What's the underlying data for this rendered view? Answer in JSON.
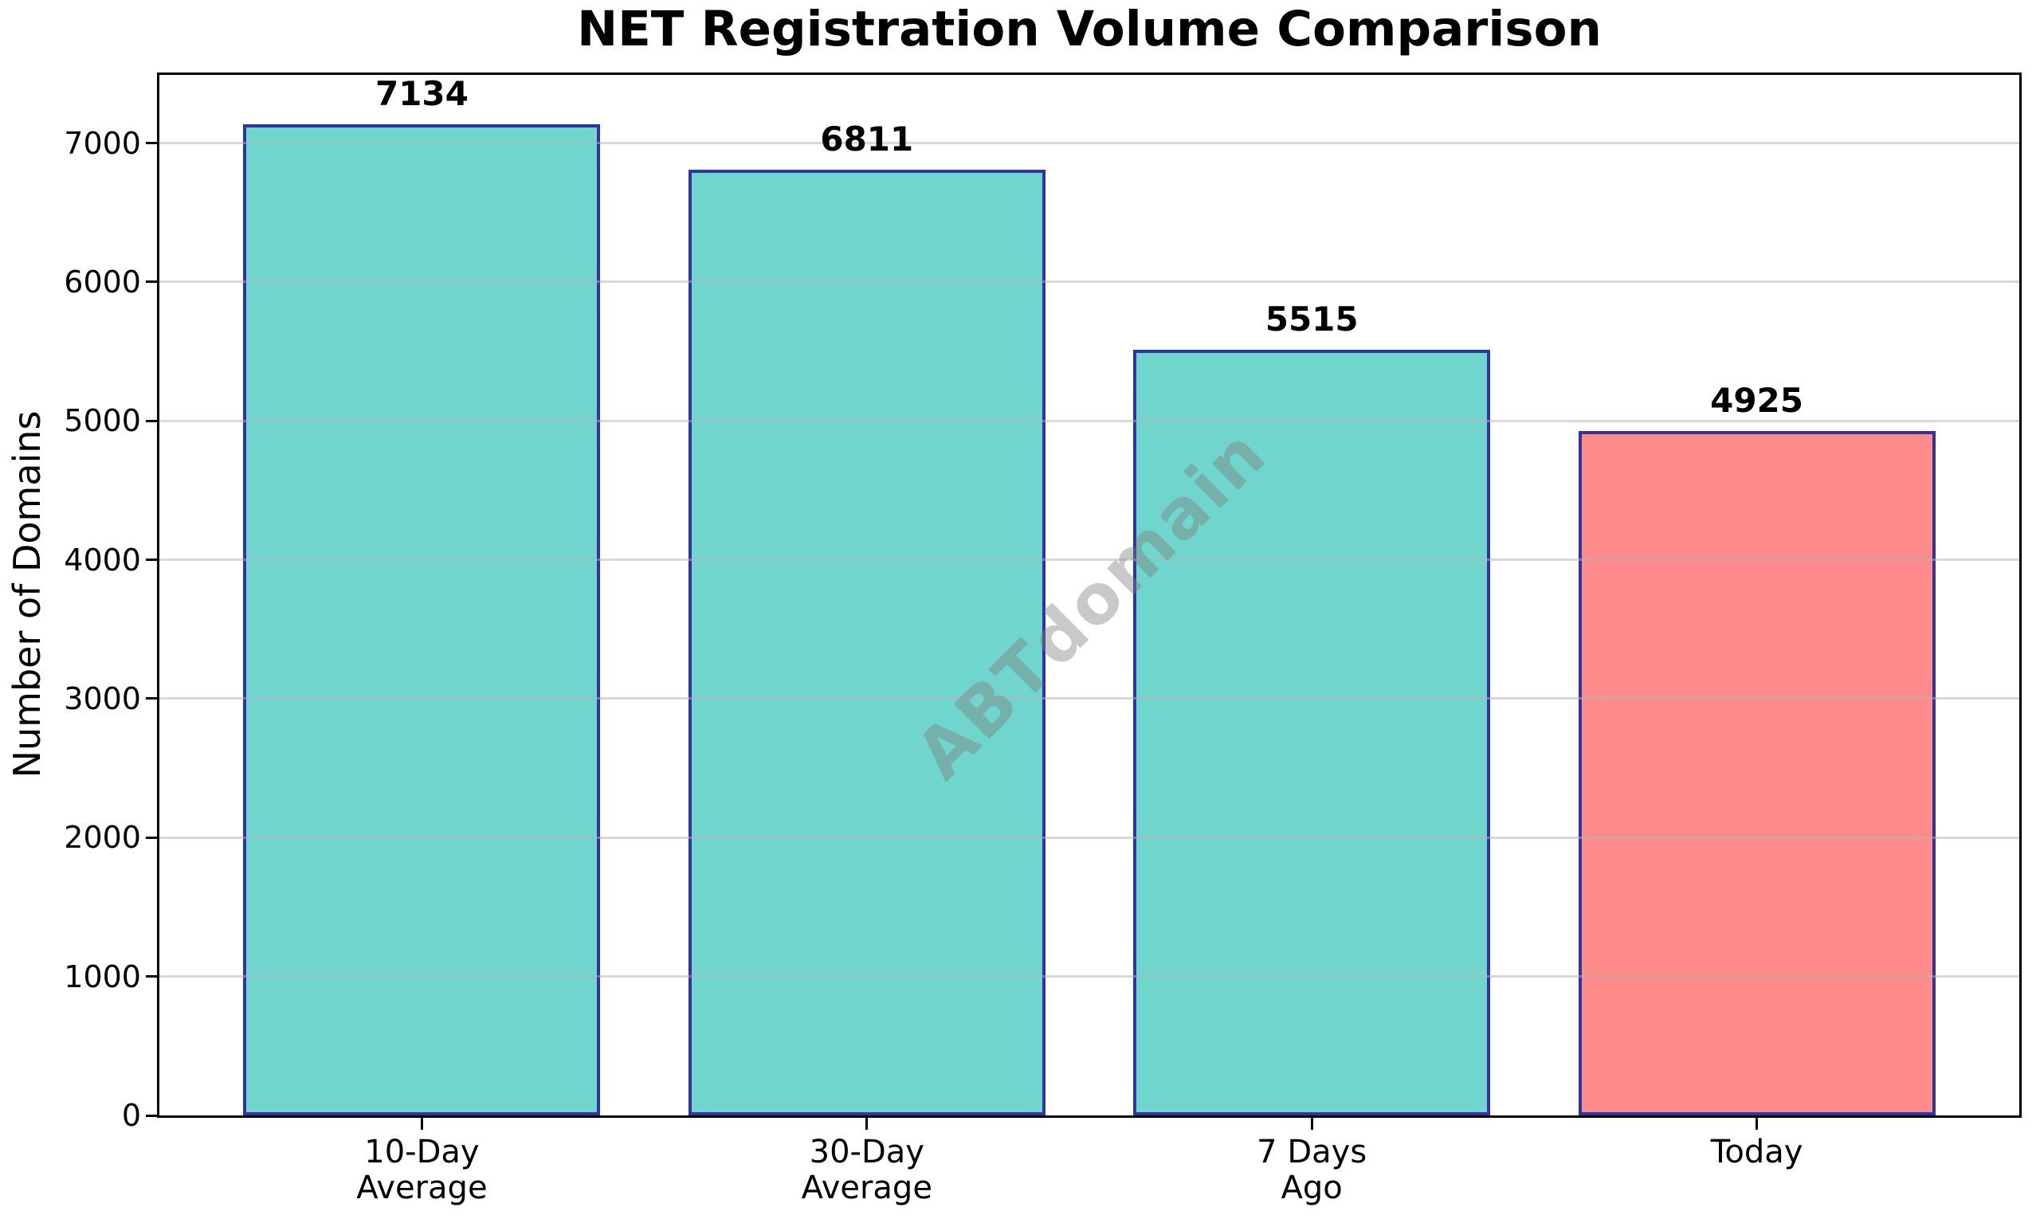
{
  "chart_data": {
    "type": "bar",
    "title": "NET Registration Volume Comparison",
    "ylabel": "Number of Domains",
    "xlabel": "",
    "categories": [
      [
        "10-Day",
        "Average"
      ],
      [
        "30-Day",
        "Average"
      ],
      [
        "7 Days",
        "Ago"
      ],
      [
        "Today"
      ]
    ],
    "values": [
      7134,
      6811,
      5515,
      4925
    ],
    "value_labels": [
      "7134",
      "6811",
      "5515",
      "4925"
    ],
    "yticks": [
      0,
      1000,
      2000,
      3000,
      4000,
      5000,
      6000,
      7000
    ],
    "ylim": [
      0,
      7491
    ],
    "grid": "horizontal",
    "legend": "none",
    "watermark": "ABTdomain",
    "colors": {
      "bars": [
        "#70d5cc",
        "#70d5cc",
        "#70d5cc",
        "#ff8a8a"
      ],
      "bar_edge": "#3132a3",
      "grid": "rgba(180,180,180,0.5)",
      "text": "#000000",
      "watermark": "rgba(127,127,127,0.42)",
      "background": "#ffffff"
    }
  }
}
